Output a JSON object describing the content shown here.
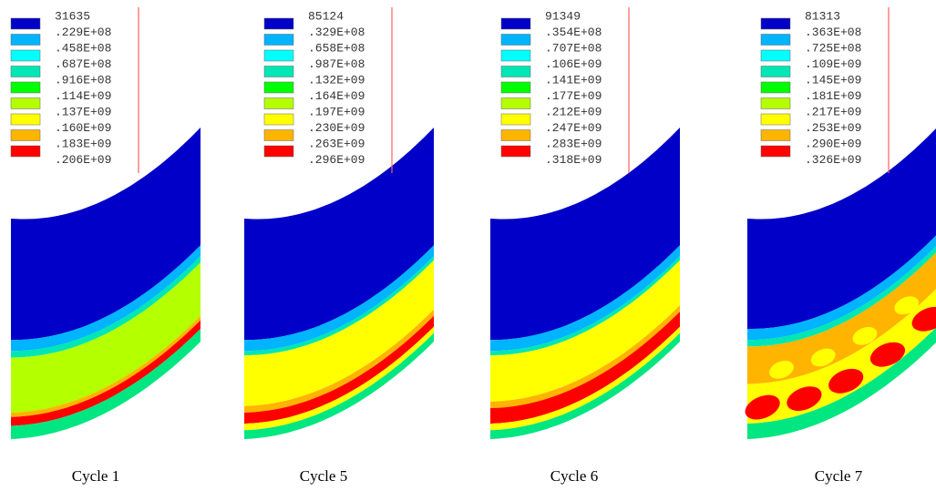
{
  "panels": [
    {
      "legend": [
        "31635",
        ".229E+08",
        ".458E+08",
        ".687E+08",
        ".916E+08",
        ".114E+09",
        ".137E+09",
        ".160E+09",
        ".183E+09",
        ".206E+09"
      ],
      "caption": "Cycle 1"
    },
    {
      "legend": [
        "85124",
        ".329E+08",
        ".658E+08",
        ".987E+08",
        ".132E+09",
        ".164E+09",
        ".197E+09",
        ".230E+09",
        ".263E+09",
        ".296E+09"
      ],
      "caption": "Cycle 5"
    },
    {
      "legend": [
        "91349",
        ".354E+08",
        ".707E+08",
        ".106E+09",
        ".141E+09",
        ".177E+09",
        ".212E+09",
        ".247E+09",
        ".283E+09",
        ".318E+09"
      ],
      "caption": "Cycle 6"
    },
    {
      "legend": [
        "81313",
        ".363E+08",
        ".725E+08",
        ".109E+09",
        ".145E+09",
        ".181E+09",
        ".217E+09",
        ".253E+09",
        ".290E+09",
        ".326E+09"
      ],
      "caption": "Cycle 7"
    }
  ]
}
